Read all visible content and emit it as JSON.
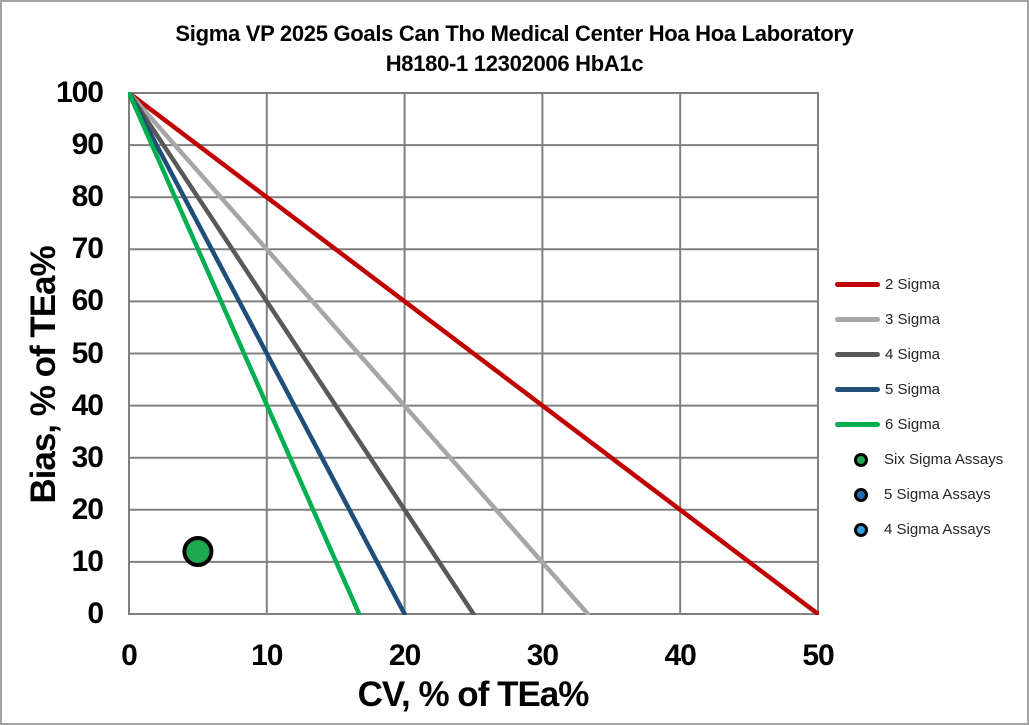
{
  "frame": {
    "background": "#ffffff",
    "border_color": "#a3a3a3"
  },
  "title": {
    "line1": "Sigma VP 2025 Goals Can Tho Medical Center Hoa Hoa Laboratory",
    "line2": "H8180-1 12302006 HbA1c"
  },
  "chart_data": {
    "type": "line",
    "title": "Sigma VP 2025 Goals Can Tho Medical Center Hoa Hoa Laboratory",
    "subtitle": "H8180-1 12302006 HbA1c",
    "xlabel": "CV, % of TEa%",
    "ylabel": "Bias, % of TEa%",
    "xlim": [
      0,
      50
    ],
    "ylim": [
      0,
      100
    ],
    "xticks": [
      0,
      10,
      20,
      30,
      40,
      50
    ],
    "yticks": [
      0,
      10,
      20,
      30,
      40,
      50,
      60,
      70,
      80,
      90,
      100
    ],
    "grid": true,
    "gridline_color": "#808080",
    "axis_border_color": "#808080",
    "legend_position": "right",
    "series": [
      {
        "name": "2 Sigma",
        "color": "#C00000",
        "points": [
          [
            0,
            100
          ],
          [
            50,
            0
          ]
        ]
      },
      {
        "name": "3 Sigma",
        "color": "#A6A6A6",
        "points": [
          [
            0,
            100
          ],
          [
            33.3,
            0
          ]
        ]
      },
      {
        "name": "4 Sigma",
        "color": "#595959",
        "points": [
          [
            0,
            100
          ],
          [
            25,
            0
          ]
        ]
      },
      {
        "name": "5 Sigma",
        "color": "#1F4E79",
        "points": [
          [
            0,
            100
          ],
          [
            20,
            0
          ]
        ]
      },
      {
        "name": "6 Sigma",
        "color": "#00B050",
        "points": [
          [
            0,
            100
          ],
          [
            16.7,
            0
          ]
        ]
      }
    ],
    "scatter_series": [
      {
        "name": "Six Sigma Assays",
        "color": "#1FA94F",
        "outline": "#000000",
        "points": [
          [
            5,
            12
          ]
        ]
      },
      {
        "name": "5 Sigma Assays",
        "color": "#1F6CB4",
        "outline": "#000000",
        "points": []
      },
      {
        "name": "4 Sigma Assays",
        "color": "#2DA0E0",
        "outline": "#000000",
        "points": []
      }
    ]
  }
}
